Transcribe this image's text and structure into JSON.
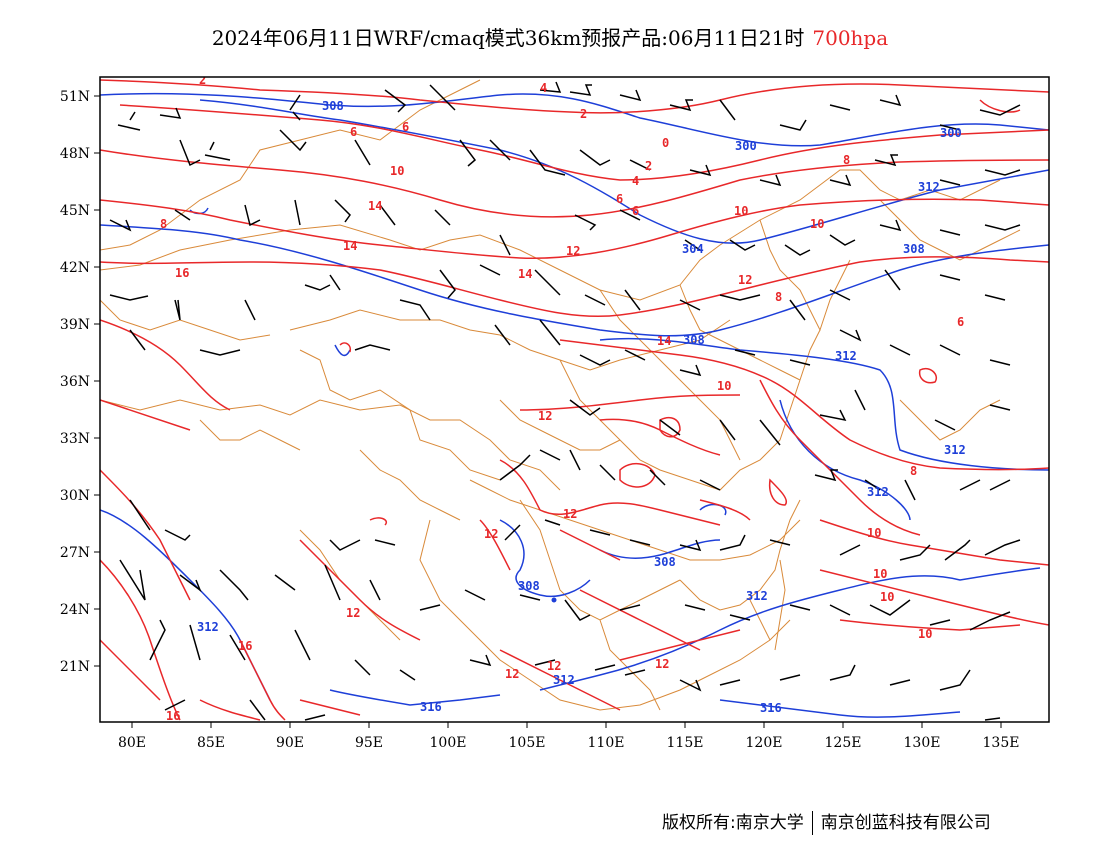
{
  "title": {
    "main": "2024年06月11日WRF/cmaq模式36km预报产品:06月11日21时",
    "level": "700hpa"
  },
  "colors": {
    "temperature_contour": "#e8282a",
    "geopotential_contour": "#1e3fd8",
    "boundaries": "#d98a3a",
    "wind_barbs": "#000000"
  },
  "axes": {
    "lat_labels": [
      "51N",
      "48N",
      "45N",
      "42N",
      "39N",
      "36N",
      "33N",
      "30N",
      "27N",
      "24N",
      "21N"
    ],
    "lon_labels": [
      "80E",
      "85E",
      "90E",
      "95E",
      "100E",
      "105E",
      "110E",
      "115E",
      "120E",
      "125E",
      "130E",
      "135E"
    ]
  },
  "contour_labels": {
    "red": [
      "2",
      "4",
      "2",
      "0",
      "4",
      "2",
      "6",
      "6",
      "8",
      "10",
      "10",
      "6",
      "10",
      "6",
      "14",
      "12",
      "14",
      "16",
      "8",
      "8",
      "12",
      "14",
      "14",
      "10",
      "6",
      "12",
      "12",
      "10",
      "8",
      "10",
      "12",
      "16",
      "12",
      "12",
      "12",
      "12",
      "10",
      "10",
      "16"
    ],
    "blue": [
      "308",
      "300",
      "300",
      "312",
      "304",
      "308",
      "308",
      "312",
      "312",
      "312",
      "308",
      "308",
      "312",
      "312",
      "312",
      "316"
    ]
  },
  "footer": {
    "left": "版权所有:南京大学",
    "right": "南京创蓝科技有限公司"
  }
}
